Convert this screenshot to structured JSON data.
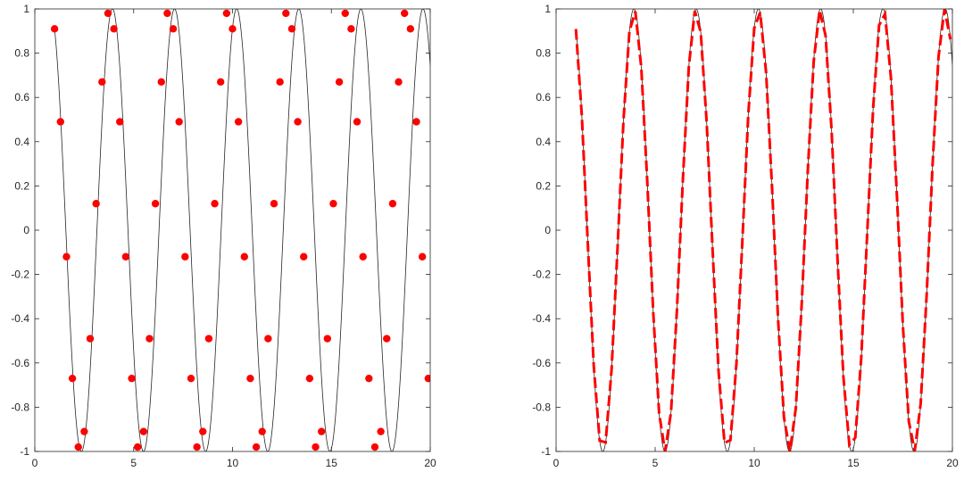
{
  "chart_data": [
    {
      "type": "line",
      "title": "",
      "xlabel": "",
      "ylabel": "",
      "xlim": [
        0,
        20
      ],
      "ylim": [
        -1,
        1
      ],
      "xticks": [
        "0",
        "5",
        "10",
        "15",
        "20"
      ],
      "yticks": [
        "-1",
        "-0.8",
        "-0.6",
        "-0.4",
        "-0.2",
        "0",
        "0.2",
        "0.4",
        "0.6",
        "0.8",
        "1"
      ],
      "grid": false,
      "series": [
        {
          "kind": "line",
          "function": "sin(2x)",
          "x_range": [
            1,
            20
          ],
          "color": "#262626"
        },
        {
          "kind": "scatter",
          "color": "#ff0000",
          "x": [
            1.0,
            1.3,
            1.6,
            1.9,
            2.2,
            2.5,
            2.8,
            3.1,
            3.4,
            3.7,
            4.0,
            4.3,
            4.6,
            4.9,
            5.2,
            5.5,
            5.8,
            6.1,
            6.4,
            6.7,
            7.0,
            7.3,
            7.6,
            7.9,
            8.2,
            8.5,
            8.8,
            9.1,
            9.4,
            9.7,
            10.0,
            10.3,
            10.6,
            10.9,
            11.2,
            11.5,
            11.8,
            12.1,
            12.4,
            12.7,
            13.0,
            13.3,
            13.6,
            13.9,
            14.2,
            14.5,
            14.8,
            15.1,
            15.4,
            15.7,
            16.0,
            16.3,
            16.6,
            16.9,
            17.2,
            17.5,
            17.8,
            18.1,
            18.4,
            18.7,
            19.0,
            19.3,
            19.6,
            19.9
          ],
          "y": [
            0.91,
            0.49,
            -0.12,
            -0.67,
            -0.98,
            -0.91,
            -0.49,
            0.12,
            0.67,
            0.98,
            0.91,
            0.49,
            -0.12,
            -0.67,
            -0.98,
            -0.91,
            -0.49,
            0.12,
            0.67,
            0.98,
            0.91,
            0.49,
            -0.12,
            -0.67,
            -0.98,
            -0.91,
            -0.49,
            0.12,
            0.67,
            0.98,
            0.91,
            0.49,
            -0.12,
            -0.67,
            -0.98,
            -0.91,
            -0.49,
            0.12,
            0.67,
            0.98,
            0.91,
            0.49,
            -0.12,
            -0.67,
            -0.98,
            -0.91,
            -0.49,
            0.12,
            0.67,
            0.98,
            0.91,
            0.49,
            -0.12,
            -0.67,
            -0.98,
            -0.91,
            -0.49,
            0.12,
            0.67,
            0.98,
            0.91,
            0.49,
            -0.12,
            -0.67
          ]
        }
      ]
    },
    {
      "type": "line",
      "title": "",
      "xlabel": "",
      "ylabel": "",
      "xlim": [
        0,
        20
      ],
      "ylim": [
        -1,
        1
      ],
      "xticks": [
        "0",
        "5",
        "10",
        "15",
        "20"
      ],
      "yticks": [
        "-1",
        "-0.8",
        "-0.6",
        "-0.4",
        "-0.2",
        "0",
        "0.2",
        "0.4",
        "0.6",
        "0.8",
        "1"
      ],
      "grid": false,
      "series": [
        {
          "kind": "line",
          "function": "sin(2x)",
          "x_range": [
            1,
            20
          ],
          "color": "#262626"
        },
        {
          "kind": "dashed-line",
          "function": "sin(2x) sampled at step 0.3",
          "x_range": [
            1.0,
            19.9
          ],
          "color": "#ff0000"
        }
      ]
    }
  ]
}
